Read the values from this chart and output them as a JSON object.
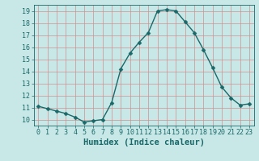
{
  "x": [
    0,
    1,
    2,
    3,
    4,
    5,
    6,
    7,
    8,
    9,
    10,
    11,
    12,
    13,
    14,
    15,
    16,
    17,
    18,
    19,
    20,
    21,
    22,
    23
  ],
  "y": [
    11.1,
    10.9,
    10.7,
    10.5,
    10.2,
    9.8,
    9.9,
    10.0,
    11.4,
    14.2,
    15.5,
    16.4,
    17.2,
    19.0,
    19.1,
    19.0,
    18.1,
    17.2,
    15.8,
    14.3,
    12.7,
    11.8,
    11.2,
    11.3
  ],
  "xlabel": "Humidex (Indice chaleur)",
  "bg_color": "#c8e8e8",
  "grid_color": "#d09090",
  "line_color": "#1a6868",
  "marker_color": "#1a6868",
  "xlim": [
    -0.5,
    23.5
  ],
  "ylim": [
    9.5,
    19.5
  ],
  "yticks": [
    10,
    11,
    12,
    13,
    14,
    15,
    16,
    17,
    18,
    19
  ],
  "xticks": [
    0,
    1,
    2,
    3,
    4,
    5,
    6,
    7,
    8,
    9,
    10,
    11,
    12,
    13,
    14,
    15,
    16,
    17,
    18,
    19,
    20,
    21,
    22,
    23
  ],
  "xtick_labels": [
    "0",
    "1",
    "2",
    "3",
    "4",
    "5",
    "6",
    "7",
    "8",
    "9",
    "10",
    "11",
    "12",
    "13",
    "14",
    "15",
    "16",
    "17",
    "18",
    "19",
    "20",
    "21",
    "22",
    "23"
  ],
  "tick_color": "#1a6868",
  "axis_color": "#1a6868",
  "xlabel_fontsize": 7.5,
  "tick_fontsize": 6,
  "linewidth": 1.0,
  "markersize": 2.5
}
